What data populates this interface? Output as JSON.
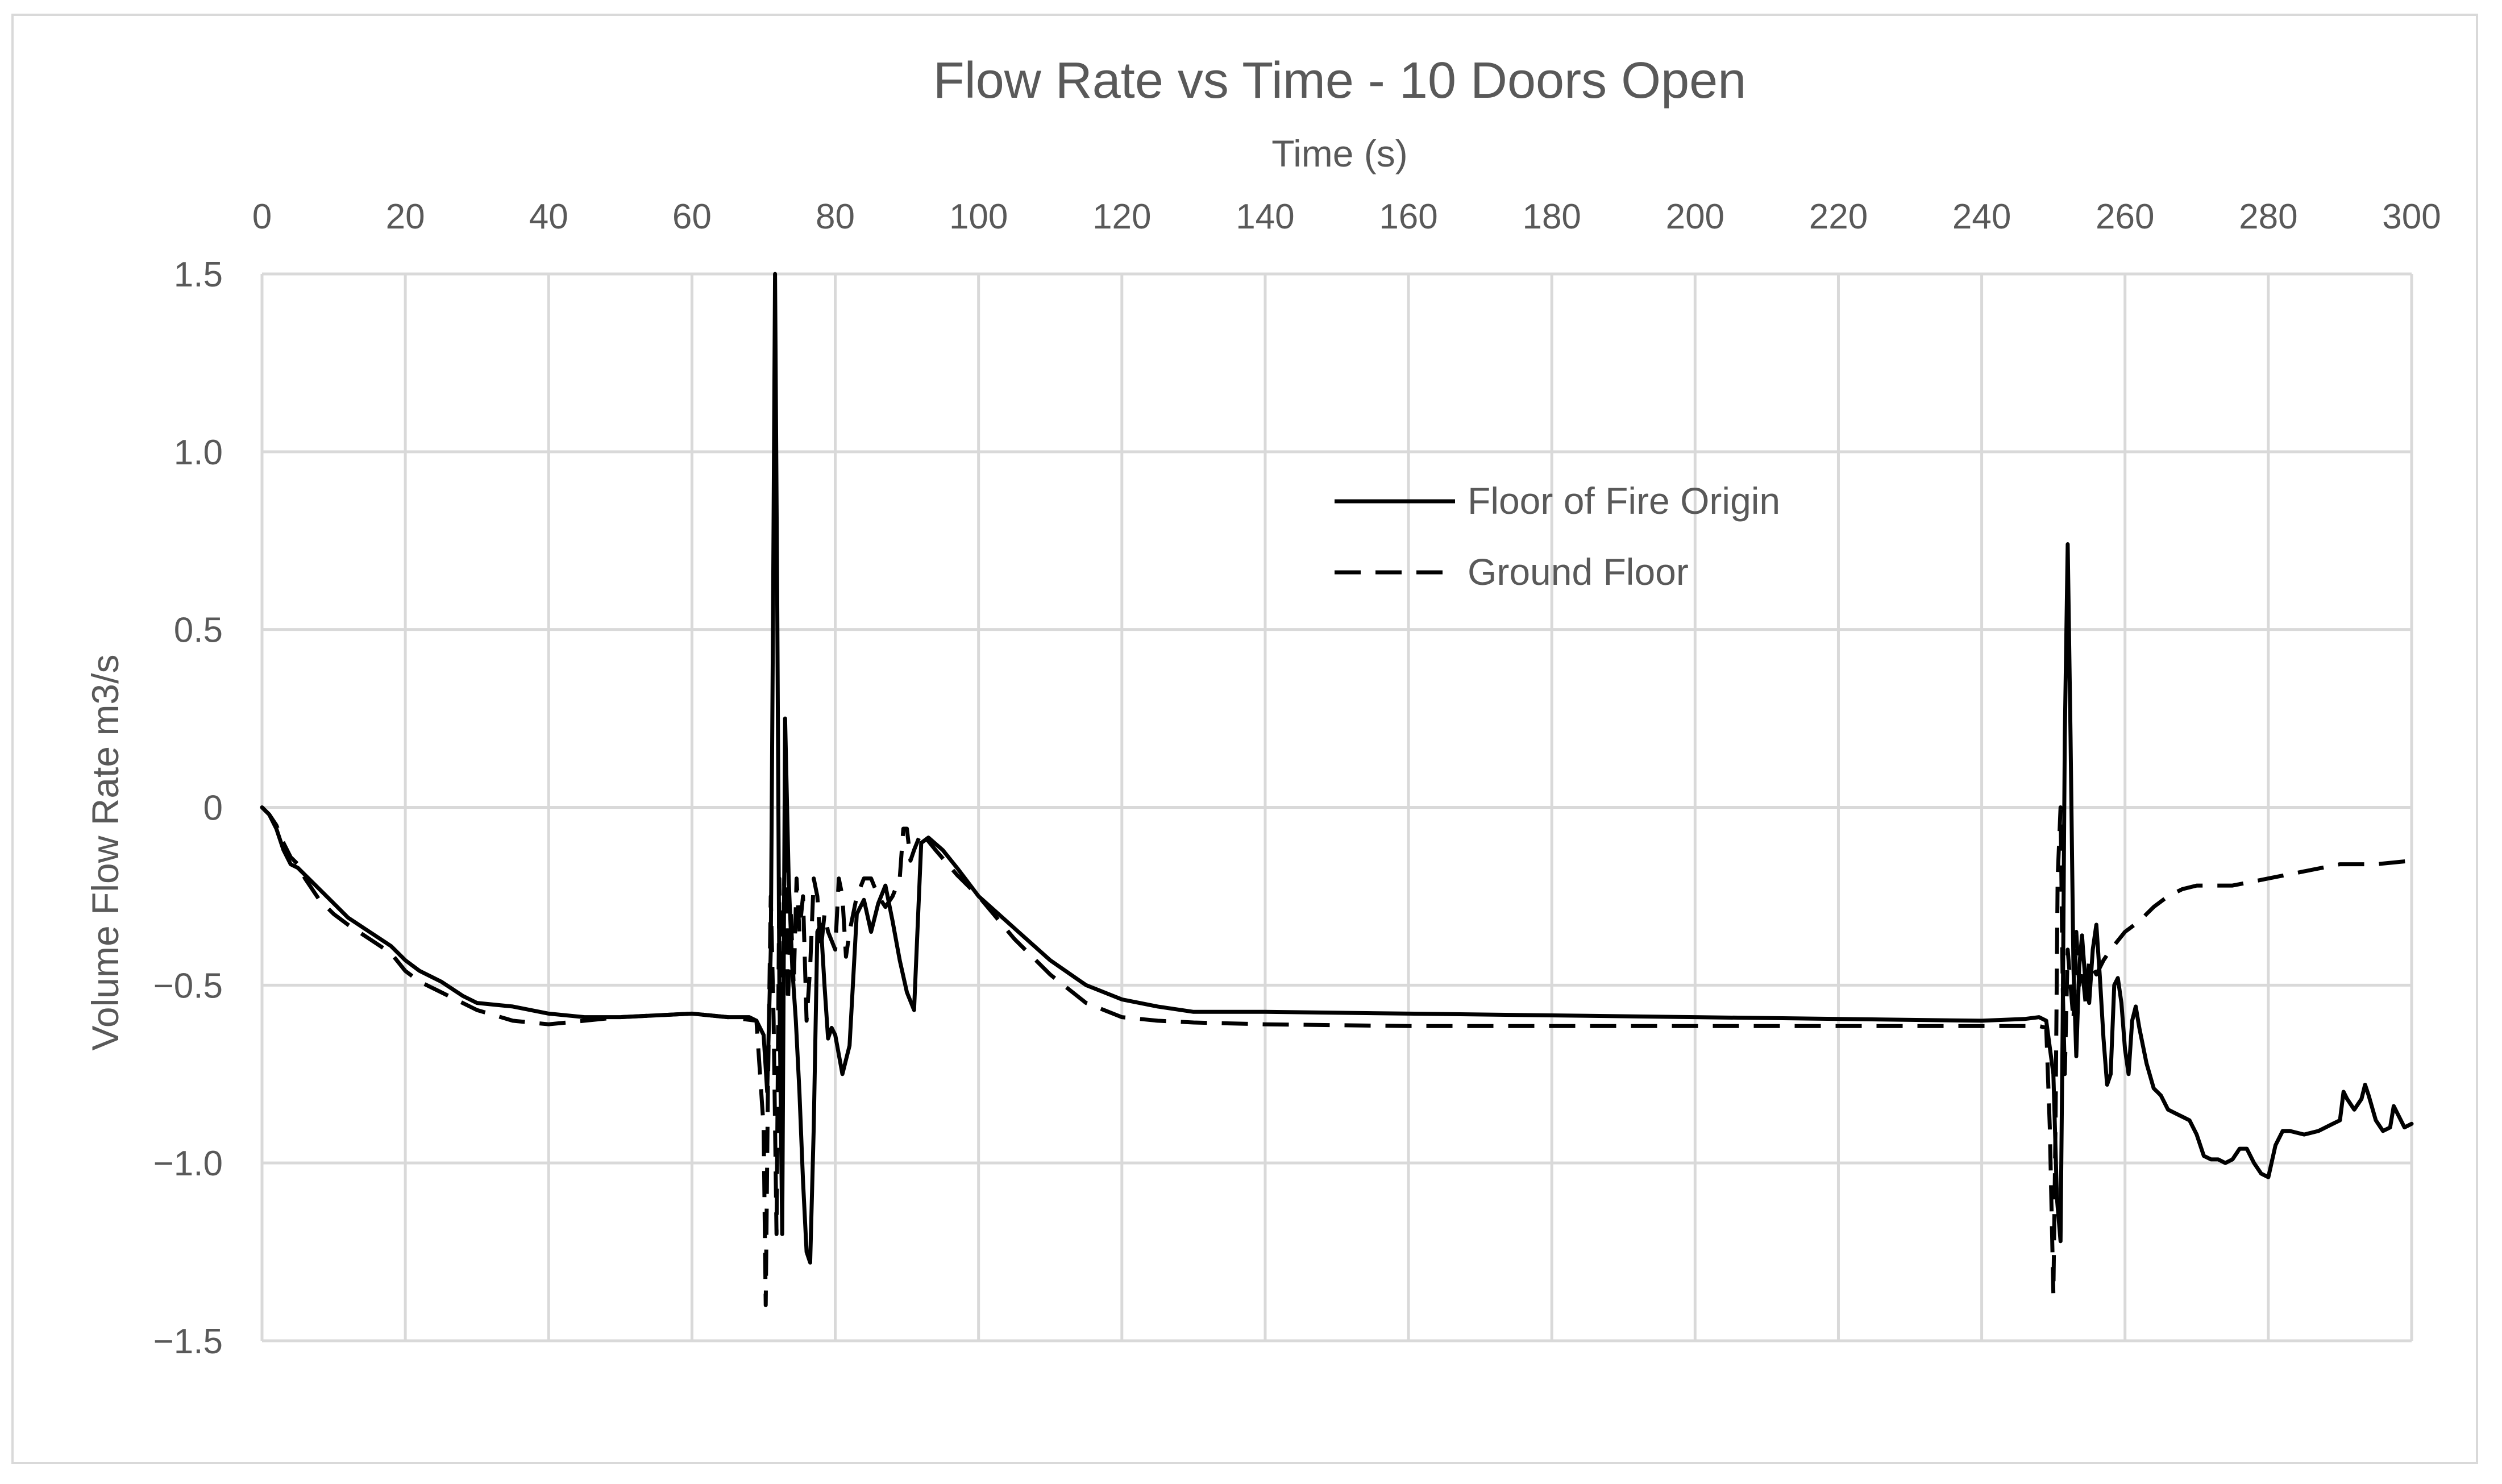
{
  "chart_data": {
    "type": "line",
    "title": "Flow Rate vs Time - 10 Doors Open",
    "xlabel": "Time (s)",
    "ylabel": "Volume Flow Rate m3/s",
    "xlim": [
      0,
      300
    ],
    "ylim": [
      -1.5,
      1.5
    ],
    "x_ticks": [
      "0",
      "20",
      "40",
      "60",
      "80",
      "100",
      "120",
      "140",
      "160",
      "180",
      "200",
      "220",
      "240",
      "260",
      "280",
      "300"
    ],
    "y_ticks": [
      "1.5",
      "1.0",
      "0.5",
      "0",
      "−0.5",
      "−1.0",
      "−1.5"
    ],
    "x_axis_position": "top",
    "grid": true,
    "legend_position": "upper-middle",
    "series": [
      {
        "name": "Floor of Fire Origin",
        "style": "solid",
        "color": "#000000",
        "points": [
          [
            0,
            0
          ],
          [
            1,
            -0.02
          ],
          [
            2,
            -0.06
          ],
          [
            3,
            -0.12
          ],
          [
            4,
            -0.16
          ],
          [
            5,
            -0.17
          ],
          [
            6,
            -0.19
          ],
          [
            8,
            -0.23
          ],
          [
            10,
            -0.27
          ],
          [
            12,
            -0.31
          ],
          [
            15,
            -0.35
          ],
          [
            18,
            -0.39
          ],
          [
            20,
            -0.43
          ],
          [
            22,
            -0.46
          ],
          [
            25,
            -0.49
          ],
          [
            28,
            -0.53
          ],
          [
            30,
            -0.55
          ],
          [
            35,
            -0.56
          ],
          [
            40,
            -0.58
          ],
          [
            45,
            -0.59
          ],
          [
            50,
            -0.59
          ],
          [
            55,
            -0.585
          ],
          [
            60,
            -0.58
          ],
          [
            65,
            -0.59
          ],
          [
            68,
            -0.59
          ],
          [
            69,
            -0.6
          ],
          [
            70,
            -0.64
          ],
          [
            70.5,
            -0.8
          ],
          [
            71,
            -0.4
          ],
          [
            71.3,
            0.5
          ],
          [
            71.6,
            1.5
          ],
          [
            71.9,
            0.6
          ],
          [
            72.2,
            -0.5
          ],
          [
            72.6,
            -1.2
          ],
          [
            73,
            0.25
          ],
          [
            73.5,
            -0.2
          ],
          [
            74,
            -0.45
          ],
          [
            74.5,
            -0.6
          ],
          [
            75,
            -0.8
          ],
          [
            75.5,
            -1.05
          ],
          [
            76,
            -1.25
          ],
          [
            76.5,
            -1.28
          ],
          [
            77,
            -0.9
          ],
          [
            77.5,
            -0.35
          ],
          [
            78,
            -0.33
          ],
          [
            78.5,
            -0.5
          ],
          [
            79,
            -0.65
          ],
          [
            79.5,
            -0.62
          ],
          [
            80,
            -0.64
          ],
          [
            81,
            -0.75
          ],
          [
            82,
            -0.67
          ],
          [
            83,
            -0.3
          ],
          [
            84,
            -0.26
          ],
          [
            85,
            -0.35
          ],
          [
            86,
            -0.27
          ],
          [
            87,
            -0.22
          ],
          [
            88,
            -0.32
          ],
          [
            89,
            -0.43
          ],
          [
            90,
            -0.52
          ],
          [
            91,
            -0.57
          ],
          [
            92,
            -0.1
          ],
          [
            93,
            -0.085
          ],
          [
            95,
            -0.12
          ],
          [
            97,
            -0.17
          ],
          [
            100,
            -0.25
          ],
          [
            105,
            -0.34
          ],
          [
            110,
            -0.43
          ],
          [
            115,
            -0.5
          ],
          [
            120,
            -0.54
          ],
          [
            125,
            -0.56
          ],
          [
            130,
            -0.575
          ],
          [
            140,
            -0.575
          ],
          [
            160,
            -0.58
          ],
          [
            180,
            -0.585
          ],
          [
            200,
            -0.59
          ],
          [
            220,
            -0.595
          ],
          [
            240,
            -0.6
          ],
          [
            246,
            -0.595
          ],
          [
            248,
            -0.59
          ],
          [
            249,
            -0.6
          ],
          [
            250,
            -0.75
          ],
          [
            250.5,
            -1.1
          ],
          [
            251,
            -1.22
          ],
          [
            251.3,
            -0.6
          ],
          [
            251.6,
            0.2
          ],
          [
            252,
            0.74
          ],
          [
            252.4,
            0.2
          ],
          [
            252.8,
            -0.45
          ],
          [
            253.2,
            -0.7
          ],
          [
            253.6,
            -0.45
          ],
          [
            254,
            -0.36
          ],
          [
            254.5,
            -0.5
          ],
          [
            255,
            -0.55
          ],
          [
            255.5,
            -0.4
          ],
          [
            256,
            -0.33
          ],
          [
            256.5,
            -0.48
          ],
          [
            257,
            -0.65
          ],
          [
            257.5,
            -0.78
          ],
          [
            258,
            -0.75
          ],
          [
            258.5,
            -0.5
          ],
          [
            259,
            -0.48
          ],
          [
            259.5,
            -0.55
          ],
          [
            260,
            -0.68
          ],
          [
            260.5,
            -0.75
          ],
          [
            261,
            -0.6
          ],
          [
            261.5,
            -0.56
          ],
          [
            262,
            -0.62
          ],
          [
            263,
            -0.72
          ],
          [
            264,
            -0.79
          ],
          [
            265,
            -0.81
          ],
          [
            266,
            -0.85
          ],
          [
            267,
            -0.86
          ],
          [
            268,
            -0.87
          ],
          [
            269,
            -0.88
          ],
          [
            270,
            -0.92
          ],
          [
            271,
            -0.98
          ],
          [
            272,
            -0.99
          ],
          [
            273,
            -0.99
          ],
          [
            274,
            -1.0
          ],
          [
            275,
            -0.99
          ],
          [
            276,
            -0.96
          ],
          [
            277,
            -0.96
          ],
          [
            278,
            -1.0
          ],
          [
            279,
            -1.03
          ],
          [
            280,
            -1.04
          ],
          [
            281,
            -0.95
          ],
          [
            282,
            -0.91
          ],
          [
            283,
            -0.91
          ],
          [
            285,
            -0.92
          ],
          [
            287,
            -0.91
          ],
          [
            289,
            -0.89
          ],
          [
            290,
            -0.88
          ],
          [
            290.5,
            -0.8
          ],
          [
            291,
            -0.82
          ],
          [
            292,
            -0.85
          ],
          [
            293,
            -0.82
          ],
          [
            293.5,
            -0.78
          ],
          [
            294,
            -0.81
          ],
          [
            295,
            -0.88
          ],
          [
            296,
            -0.91
          ],
          [
            297,
            -0.9
          ],
          [
            297.5,
            -0.84
          ],
          [
            298,
            -0.86
          ],
          [
            299,
            -0.9
          ],
          [
            300,
            -0.89
          ]
        ]
      },
      {
        "name": "Ground Floor",
        "style": "dashed",
        "color": "#000000",
        "points": [
          [
            0,
            0
          ],
          [
            1,
            -0.02
          ],
          [
            2,
            -0.05
          ],
          [
            3,
            -0.1
          ],
          [
            4,
            -0.14
          ],
          [
            5,
            -0.16
          ],
          [
            6,
            -0.2
          ],
          [
            8,
            -0.26
          ],
          [
            10,
            -0.3
          ],
          [
            12,
            -0.33
          ],
          [
            15,
            -0.37
          ],
          [
            18,
            -0.41
          ],
          [
            20,
            -0.46
          ],
          [
            22,
            -0.49
          ],
          [
            25,
            -0.52
          ],
          [
            28,
            -0.55
          ],
          [
            30,
            -0.57
          ],
          [
            35,
            -0.6
          ],
          [
            40,
            -0.61
          ],
          [
            45,
            -0.6
          ],
          [
            50,
            -0.59
          ],
          [
            55,
            -0.585
          ],
          [
            60,
            -0.58
          ],
          [
            65,
            -0.59
          ],
          [
            69,
            -0.6
          ],
          [
            70,
            -0.9
          ],
          [
            70.3,
            -1.4
          ],
          [
            70.6,
            -0.8
          ],
          [
            71,
            -0.25
          ],
          [
            71.4,
            -0.6
          ],
          [
            71.8,
            -1.2
          ],
          [
            72.2,
            -0.2
          ],
          [
            72.6,
            -0.6
          ],
          [
            73,
            -0.05
          ],
          [
            73.4,
            -0.55
          ],
          [
            73.8,
            -0.3
          ],
          [
            74.2,
            -0.5
          ],
          [
            74.6,
            -0.2
          ],
          [
            75,
            -0.35
          ],
          [
            75.5,
            -0.25
          ],
          [
            76,
            -0.6
          ],
          [
            76.5,
            -0.45
          ],
          [
            77,
            -0.2
          ],
          [
            77.5,
            -0.25
          ],
          [
            78,
            -0.4
          ],
          [
            78.5,
            -0.3
          ],
          [
            79,
            -0.35
          ],
          [
            80,
            -0.4
          ],
          [
            80.5,
            -0.2
          ],
          [
            81,
            -0.25
          ],
          [
            81.5,
            -0.42
          ],
          [
            82,
            -0.35
          ],
          [
            83,
            -0.25
          ],
          [
            84,
            -0.2
          ],
          [
            85,
            -0.2
          ],
          [
            86,
            -0.25
          ],
          [
            87,
            -0.28
          ],
          [
            88,
            -0.25
          ],
          [
            89,
            -0.2
          ],
          [
            89.5,
            -0.06
          ],
          [
            90,
            -0.06
          ],
          [
            90.5,
            -0.15
          ],
          [
            91,
            -0.12
          ],
          [
            92,
            -0.07
          ],
          [
            94,
            -0.12
          ],
          [
            97,
            -0.19
          ],
          [
            100,
            -0.25
          ],
          [
            105,
            -0.37
          ],
          [
            110,
            -0.47
          ],
          [
            115,
            -0.55
          ],
          [
            120,
            -0.59
          ],
          [
            125,
            -0.6
          ],
          [
            130,
            -0.605
          ],
          [
            140,
            -0.61
          ],
          [
            160,
            -0.615
          ],
          [
            180,
            -0.615
          ],
          [
            200,
            -0.615
          ],
          [
            220,
            -0.615
          ],
          [
            240,
            -0.615
          ],
          [
            248,
            -0.615
          ],
          [
            249,
            -0.62
          ],
          [
            249.5,
            -0.9
          ],
          [
            250,
            -1.37
          ],
          [
            250.3,
            -0.9
          ],
          [
            250.6,
            -0.2
          ],
          [
            251,
            0.0
          ],
          [
            251.3,
            -0.5
          ],
          [
            251.6,
            -0.75
          ],
          [
            252,
            -0.4
          ],
          [
            252.4,
            -0.5
          ],
          [
            252.8,
            -0.6
          ],
          [
            253.2,
            -0.35
          ],
          [
            253.6,
            -0.5
          ],
          [
            254,
            -0.45
          ],
          [
            254.5,
            -0.55
          ],
          [
            255,
            -0.43
          ],
          [
            256,
            -0.47
          ],
          [
            257,
            -0.43
          ],
          [
            258,
            -0.4
          ],
          [
            260,
            -0.35
          ],
          [
            262,
            -0.32
          ],
          [
            264,
            -0.28
          ],
          [
            266,
            -0.25
          ],
          [
            268,
            -0.23
          ],
          [
            270,
            -0.22
          ],
          [
            275,
            -0.22
          ],
          [
            280,
            -0.2
          ],
          [
            285,
            -0.18
          ],
          [
            290,
            -0.16
          ],
          [
            295,
            -0.16
          ],
          [
            300,
            -0.15
          ]
        ]
      }
    ]
  }
}
